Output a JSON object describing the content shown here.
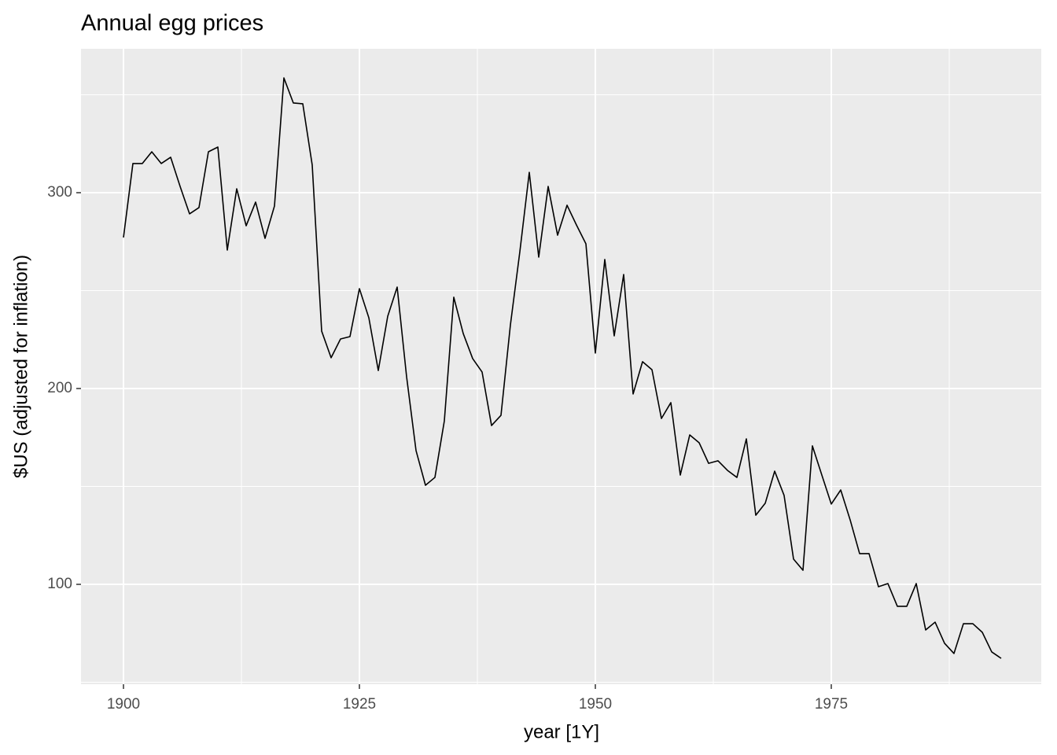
{
  "chart_data": {
    "type": "line",
    "title": "Annual egg prices",
    "x_label": "year [1Y]",
    "y_label": "$US (adjusted for inflation)",
    "x": [
      1900,
      1901,
      1902,
      1903,
      1904,
      1905,
      1906,
      1907,
      1908,
      1909,
      1910,
      1911,
      1912,
      1913,
      1914,
      1915,
      1916,
      1917,
      1918,
      1919,
      1920,
      1921,
      1922,
      1923,
      1924,
      1925,
      1926,
      1927,
      1928,
      1929,
      1930,
      1931,
      1932,
      1933,
      1934,
      1935,
      1936,
      1937,
      1938,
      1939,
      1940,
      1941,
      1942,
      1943,
      1944,
      1945,
      1946,
      1947,
      1948,
      1949,
      1950,
      1951,
      1952,
      1953,
      1954,
      1955,
      1956,
      1957,
      1958,
      1959,
      1960,
      1961,
      1962,
      1963,
      1964,
      1965,
      1966,
      1967,
      1968,
      1969,
      1970,
      1971,
      1972,
      1973,
      1974,
      1975,
      1976,
      1977,
      1978,
      1979,
      1980,
      1981,
      1982,
      1983,
      1984,
      1985,
      1986,
      1987,
      1988,
      1989,
      1990,
      1991,
      1992,
      1993
    ],
    "series": [
      {
        "color": "#000000",
        "values": [
          277.1,
          314.9,
          314.9,
          320.9,
          314.9,
          318.1,
          303.2,
          289.2,
          292.4,
          320.9,
          323.3,
          270.7,
          302.0,
          283.1,
          295.2,
          276.7,
          293.2,
          358.6,
          345.8,
          345.4,
          314.1,
          229.3,
          215.7,
          225.3,
          226.5,
          251.0,
          236.1,
          209.2,
          236.9,
          251.8,
          206.0,
          168.3,
          150.6,
          154.6,
          183.5,
          246.6,
          228.1,
          215.3,
          208.4,
          181.1,
          186.3,
          232.5,
          269.9,
          310.4,
          267.1,
          303.2,
          278.3,
          293.6,
          283.5,
          273.9,
          218.1,
          265.9,
          226.9,
          258.2,
          197.2,
          213.7,
          209.6,
          184.7,
          192.8,
          155.8,
          176.3,
          172.3,
          161.8,
          163.1,
          158.2,
          154.6,
          174.3,
          135.3,
          141.4,
          157.8,
          145.4,
          112.9,
          107.2,
          170.7,
          155.8,
          141.0,
          148.2,
          132.9,
          115.7,
          115.7,
          98.8,
          100.4,
          88.8,
          88.8,
          100.4,
          76.7,
          80.7,
          69.9,
          64.7,
          79.9,
          79.9,
          75.5,
          65.5,
          62.2
        ]
      }
    ],
    "xlim": [
      1895.5,
      1997.25
    ],
    "ylim": [
      49,
      373.5
    ],
    "xticks": [
      1900,
      1925,
      1950,
      1975
    ],
    "yticks": [
      100,
      200,
      300
    ],
    "x_minor_breaks": [
      1912.5,
      1937.5,
      1962.5,
      1987.5
    ],
    "y_minor_breaks": [
      50,
      150,
      250,
      350
    ],
    "grid": true
  }
}
